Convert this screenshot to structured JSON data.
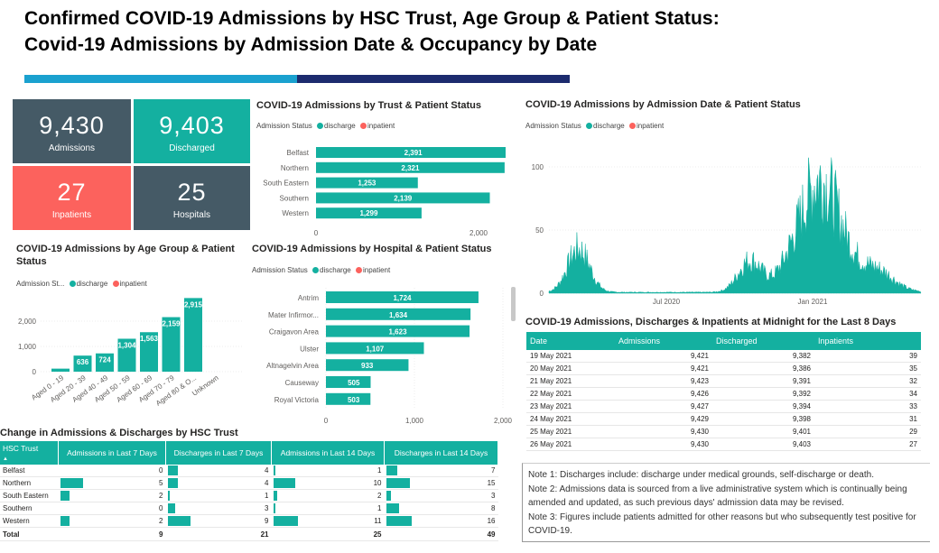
{
  "header": {
    "title_line1": "Confirmed COVID-19 Admissions by HSC Trust, Age Group & Patient Status:",
    "title_line2": "Covid-19 Admissions by Admission Date & Occupancy by Date"
  },
  "colors": {
    "teal": "#14b0a0",
    "slate": "#455a66",
    "coral": "#fc625d",
    "navy": "#1c2b6e",
    "lightblue": "#1aa1cf"
  },
  "kpis": [
    {
      "value": "9,430",
      "label": "Admissions"
    },
    {
      "value": "9,403",
      "label": "Discharged"
    },
    {
      "value": "27",
      "label": "Inpatients"
    },
    {
      "value": "25",
      "label": "Hospitals"
    }
  ],
  "legend": {
    "label_full": "Admission Status",
    "label_short": "Admission St...",
    "discharge": "discharge",
    "inpatient": "inpatient"
  },
  "trust_chart": {
    "title": "COVID-19 Admissions by Trust & Patient Status",
    "chart_data": {
      "type": "bar",
      "orientation": "horizontal",
      "categories": [
        "Belfast",
        "Northern",
        "South Eastern",
        "Southern",
        "Western"
      ],
      "series": [
        {
          "name": "discharge",
          "values": [
            2391,
            2321,
            1253,
            2139,
            1299
          ]
        }
      ],
      "labels": [
        "2,391",
        "2,321",
        "1,253",
        "2,139",
        "1,299"
      ],
      "xticks": [
        "0",
        "2,000"
      ],
      "xlim": [
        0,
        2500
      ]
    }
  },
  "age_chart": {
    "title_line1": "COVID-19 Admissions by Age Group & Patient",
    "title_line2": "Status",
    "chart_data": {
      "type": "bar",
      "categories": [
        "Aged 0 - 19",
        "Aged 20 - 39",
        "Aged 40 - 49",
        "Aged 50 - 59",
        "Aged 60 - 69",
        "Aged 70 - 79",
        "Aged 80 & O...",
        "Unknown"
      ],
      "series": [
        {
          "name": "discharge",
          "values": [
            120,
            636,
            724,
            1304,
            1563,
            2159,
            2915,
            0
          ]
        }
      ],
      "labels": [
        "",
        "636",
        "724",
        "1,304",
        "1,563",
        "2,159",
        "2,915",
        ""
      ],
      "yticks": [
        "0",
        "1,000",
        "2,000"
      ],
      "ylim": [
        0,
        3000
      ]
    }
  },
  "hospital_chart": {
    "title": "COVID-19 Admissions by Hospital & Patient Status",
    "chart_data": {
      "type": "bar",
      "orientation": "horizontal",
      "categories": [
        "Antrim",
        "Mater Infirmor...",
        "Craigavon Area",
        "Ulster",
        "Altnagelvin Area",
        "Causeway",
        "Royal Victoria"
      ],
      "series": [
        {
          "name": "discharge",
          "values": [
            1724,
            1634,
            1623,
            1107,
            933,
            505,
            503
          ]
        }
      ],
      "labels": [
        "1,724",
        "1,634",
        "1,623",
        "1,107",
        "933",
        "505",
        "503"
      ],
      "xticks": [
        "0",
        "1,000",
        "2,000"
      ],
      "xlim": [
        0,
        2000
      ]
    }
  },
  "date_chart": {
    "title": "COVID-19 Admissions by Admission Date & Patient Status",
    "chart_data": {
      "type": "bar",
      "x_start": "2020-03",
      "x_end": "2021-05",
      "xticks": [
        "Jul 2020",
        "Jan 2021"
      ],
      "yticks": [
        "0",
        "50",
        "100"
      ],
      "ylim": [
        0,
        110
      ],
      "series": [
        {
          "name": "discharge",
          "approx_peaks": [
            {
              "x": "2020-04",
              "y": 44
            },
            {
              "x": "2020-10",
              "y": 45
            },
            {
              "x": "2021-01",
              "y": 105
            }
          ]
        }
      ]
    }
  },
  "midnight_table": {
    "title": "COVID-19 Admissions, Discharges & Inpatients at Midnight for the Last 8 Days",
    "columns": [
      "Date",
      "Admissions",
      "Discharged",
      "Inpatients"
    ],
    "rows": [
      [
        "19 May 2021",
        "9,421",
        "9,382",
        "39"
      ],
      [
        "20 May 2021",
        "9,421",
        "9,386",
        "35"
      ],
      [
        "21 May 2021",
        "9,423",
        "9,391",
        "32"
      ],
      [
        "22 May 2021",
        "9,426",
        "9,392",
        "34"
      ],
      [
        "23 May 2021",
        "9,427",
        "9,394",
        "33"
      ],
      [
        "24 May 2021",
        "9,429",
        "9,398",
        "31"
      ],
      [
        "25 May 2021",
        "9,430",
        "9,401",
        "29"
      ],
      [
        "26 May 2021",
        "9,430",
        "9,403",
        "27"
      ]
    ]
  },
  "change_table": {
    "title": "Change in Admissions & Discharges by HSC Trust",
    "columns": [
      "HSC Trust",
      "Admissions in Last 7 Days",
      "Discharges in Last 7 Days",
      "Admissions in Last 14 Days",
      "Discharges in Last 14 Days"
    ],
    "rows": [
      [
        "Belfast",
        "0",
        "4",
        "1",
        "7"
      ],
      [
        "Northern",
        "5",
        "4",
        "10",
        "15"
      ],
      [
        "South Eastern",
        "2",
        "1",
        "2",
        "3"
      ],
      [
        "Southern",
        "0",
        "3",
        "1",
        "8"
      ],
      [
        "Western",
        "2",
        "9",
        "11",
        "16"
      ]
    ],
    "bar_fractions": [
      [
        0,
        0.44,
        0.09,
        0.44
      ],
      [
        1,
        0.44,
        0.91,
        0.94
      ],
      [
        0.4,
        0.11,
        0.18,
        0.19
      ],
      [
        0,
        0.33,
        0.09,
        0.5
      ],
      [
        0.4,
        1,
        1,
        1
      ]
    ],
    "total": [
      "Total",
      "9",
      "21",
      "25",
      "49"
    ]
  },
  "notes": [
    "Note 1: Discharges include: discharge under medical grounds, self-discharge or death.",
    "Note 2: Admissions data is sourced from a live administrative system which is continually being amended and updated, as such previous days' admission data may be revised.",
    "Note 3: Figures include patients admitted for other reasons but who subsequently test positive for COVID-19."
  ]
}
